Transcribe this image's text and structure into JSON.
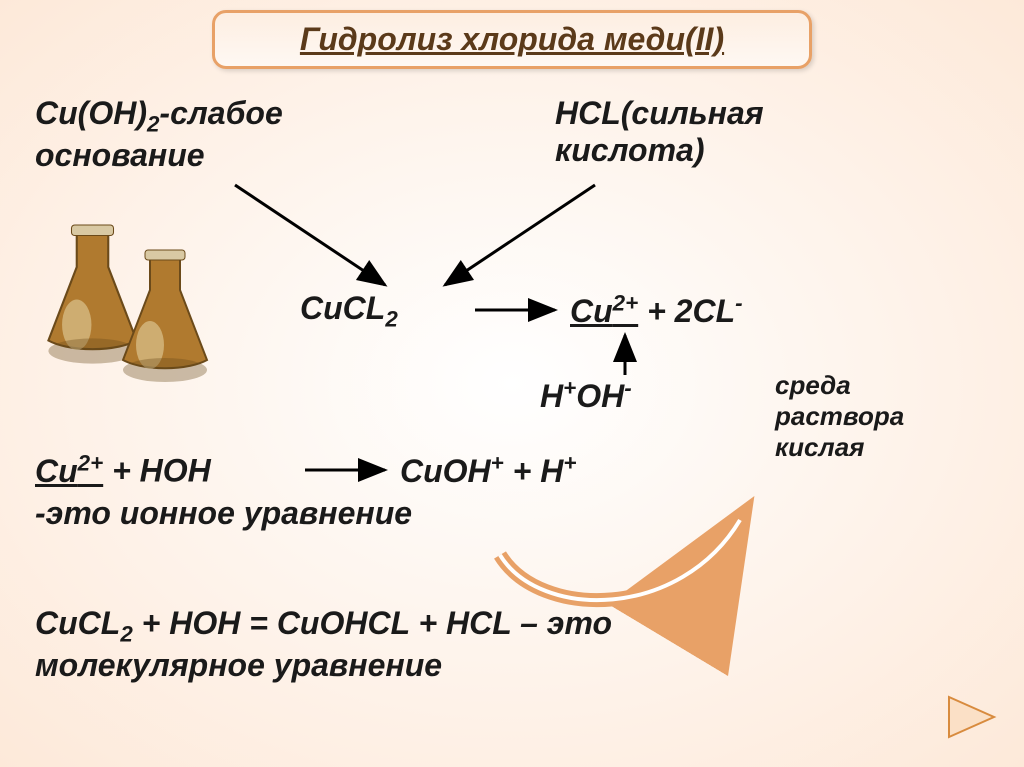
{
  "colors": {
    "background_gradient_inner": "#ffffff",
    "background_gradient_outer": "#fde9d9",
    "title_border": "#e8a167",
    "title_fill_top": "#fdeee1",
    "title_fill_bottom": "#fef8f3",
    "brown_text": "#5b3a1a",
    "black_text": "#1a1a1a",
    "flask_body": "#b07a2f",
    "flask_neck": "#d9c9a3",
    "flask_highlight": "#e8d7a8",
    "flask_shadow": "#6b4a1a",
    "arrow_color": "#000000",
    "curve_arrow": "#e8a167",
    "nav_fill": "#fbe0c6",
    "nav_stroke": "#d88b3e"
  },
  "title": "Гидролиз хлорида меди(II)",
  "base_label_1": "Cu(OH)",
  "base_label_1_sub": "2",
  "base_label_2": "-слабое",
  "base_label_3": "основание",
  "acid_label_1": "HCL(сильная",
  "acid_label_2": "кислота)",
  "dissoc_1a": "CuCL",
  "dissoc_1a_sub": "2",
  "dissoc_1b": "Cu",
  "dissoc_1b_sup": "2+",
  "dissoc_1c": " + 2CL",
  "dissoc_1c_sup": "-",
  "water": "H",
  "water_sup1": "+",
  "water_2": "OH",
  "water_sup2": "-",
  "env_1": "среда",
  "env_2": "раствора",
  "env_3": "кислая",
  "ionic_1a": "Cu",
  "ionic_1a_sup": "2+",
  "ionic_1b": " + HOH",
  "ionic_1c": "CuOH",
  "ionic_1c_sup": "+",
  "ionic_1d": " + H",
  "ionic_1d_sup": "+",
  "ionic_note": "-это ионное уравнение",
  "mol_1a": "CuCL",
  "mol_1a_sub": "2",
  "mol_1b": " + HOH = CuOHCL + HCL – это",
  "mol_note": "молекулярное уравнение"
}
